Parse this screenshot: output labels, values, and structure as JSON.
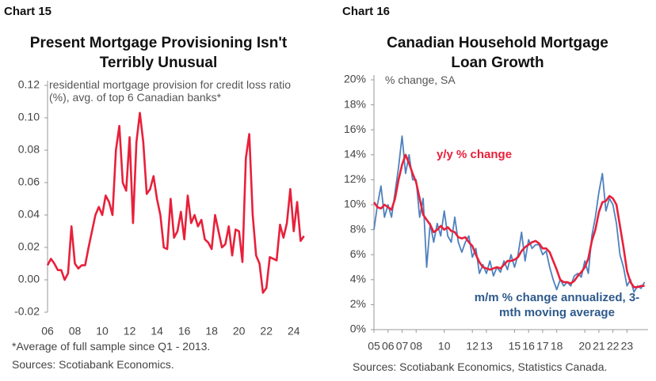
{
  "chart_data": [
    {
      "type": "line",
      "chart_label": "Chart 15",
      "title": "Present Mortgage Provisioning Isn't Terribly Unusual",
      "x": [
        2006,
        2006.25,
        2006.5,
        2006.75,
        2007,
        2007.25,
        2007.5,
        2007.75,
        2008,
        2008.25,
        2008.5,
        2008.75,
        2009,
        2009.25,
        2009.5,
        2009.75,
        2010,
        2010.25,
        2010.5,
        2010.75,
        2011,
        2011.25,
        2011.5,
        2011.75,
        2012,
        2012.25,
        2012.5,
        2012.75,
        2013,
        2013.25,
        2013.5,
        2013.75,
        2014,
        2014.25,
        2014.5,
        2014.75,
        2015,
        2015.25,
        2015.5,
        2015.75,
        2016,
        2016.25,
        2016.5,
        2016.75,
        2017,
        2017.25,
        2017.5,
        2017.75,
        2018,
        2018.25,
        2018.5,
        2018.75,
        2019,
        2019.25,
        2019.5,
        2019.75,
        2020,
        2020.25,
        2020.5,
        2020.75,
        2021,
        2021.25,
        2021.5,
        2021.75,
        2022,
        2022.25,
        2022.5,
        2022.75,
        2023,
        2023.25,
        2023.5,
        2023.75,
        2024,
        2024.25,
        2024.5,
        2024.75
      ],
      "series": [
        {
          "name": "residential mortgage provision for credit loss ratio (%), avg. of top 6 Canadian banks*",
          "color": "#e8203a",
          "values": [
            0.009,
            0.013,
            0.01,
            0.006,
            0.006,
            0,
            0.004,
            0.033,
            0.01,
            0.007,
            0.009,
            0.009,
            0.02,
            0.03,
            0.04,
            0.045,
            0.04,
            0.052,
            0.048,
            0.04,
            0.08,
            0.095,
            0.06,
            0.055,
            0.088,
            0.035,
            0.085,
            0.103,
            0.085,
            0.053,
            0.056,
            0.064,
            0.05,
            0.04,
            0.02,
            0.019,
            0.05,
            0.026,
            0.03,
            0.042,
            0.025,
            0.052,
            0.035,
            0.04,
            0.033,
            0.037,
            0.025,
            0.023,
            0.019,
            0.04,
            0.03,
            0.02,
            0.022,
            0.033,
            0.015,
            0.031,
            0.03,
            0.011,
            0.075,
            0.09,
            0.04,
            0.015,
            0.01,
            -0.008,
            -0.005,
            0.014,
            0.013,
            0.012,
            0.034,
            0.026,
            0.035,
            0.056,
            0.03,
            0.048,
            0.024,
            0.027
          ]
        }
      ],
      "xlim": [
        2006,
        2025
      ],
      "xticks": [
        {
          "value": 2006,
          "label": "06"
        },
        {
          "value": 2008,
          "label": "08"
        },
        {
          "value": 2010,
          "label": "10"
        },
        {
          "value": 2012,
          "label": "12"
        },
        {
          "value": 2014,
          "label": "14"
        },
        {
          "value": 2016,
          "label": "16"
        },
        {
          "value": 2018,
          "label": "18"
        },
        {
          "value": 2020,
          "label": "20"
        },
        {
          "value": 2022,
          "label": "22"
        },
        {
          "value": 2024,
          "label": "24"
        }
      ],
      "ylim": [
        -0.02,
        0.12
      ],
      "yticks": [
        -0.02,
        {
          "value": 0,
          "label": "0.00"
        },
        0.02,
        0.04,
        0.06,
        0.08,
        {
          "value": 0.1,
          "label": "0.10"
        },
        0.12
      ],
      "grid": false,
      "footnotes": [
        "*Average of full sample since Q1 - 2013.",
        "Sources: Scotiabank Economics."
      ]
    },
    {
      "type": "line",
      "chart_label": "Chart 16",
      "title": "Canadian Household Mortgage Loan Growth",
      "ylabel": "% change, SA",
      "x": [
        2005,
        2005.25,
        2005.5,
        2005.75,
        2006,
        2006.25,
        2006.5,
        2006.75,
        2007,
        2007.25,
        2007.5,
        2007.75,
        2008,
        2008.25,
        2008.5,
        2008.75,
        2009,
        2009.25,
        2009.5,
        2009.75,
        2010,
        2010.25,
        2010.5,
        2010.75,
        2011,
        2011.25,
        2011.5,
        2011.75,
        2012,
        2012.25,
        2012.5,
        2012.75,
        2013,
        2013.25,
        2013.5,
        2013.75,
        2014,
        2014.25,
        2014.5,
        2014.75,
        2015,
        2015.25,
        2015.5,
        2015.75,
        2016,
        2016.25,
        2016.5,
        2016.75,
        2017,
        2017.25,
        2017.5,
        2017.75,
        2018,
        2018.25,
        2018.5,
        2018.75,
        2019,
        2019.25,
        2019.5,
        2019.75,
        2020,
        2020.25,
        2020.5,
        2020.75,
        2021,
        2021.25,
        2021.5,
        2021.75,
        2022,
        2022.25,
        2022.5,
        2022.75,
        2023,
        2023.25,
        2023.5,
        2023.75,
        2024,
        2024.25
      ],
      "series": [
        {
          "name": "m/m % change annualized, 3-mth moving average",
          "color": "#4f81bd",
          "values": [
            8.0,
            10.0,
            11.5,
            9.0,
            10.0,
            9.0,
            11.0,
            13.0,
            15.5,
            12.5,
            14.0,
            12.0,
            12.0,
            9.0,
            10.5,
            5.0,
            8.5,
            7.0,
            8.5,
            7.5,
            9.5,
            7.5,
            7.0,
            9.0,
            7.0,
            6.2,
            7.0,
            7.5,
            5.8,
            6.5,
            4.5,
            5.2,
            4.5,
            5.5,
            4.3,
            5.0,
            4.6,
            5.5,
            4.8,
            6.0,
            5.0,
            6.0,
            7.8,
            5.5,
            7.2,
            6.5,
            6.8,
            6.8,
            6.0,
            6.3,
            5.0,
            4.0,
            3.2,
            4.0,
            3.5,
            3.8,
            3.5,
            4.3,
            4.5,
            4.2,
            5.5,
            4.5,
            7.5,
            9.0,
            11.0,
            12.5,
            9.5,
            10.5,
            10.0,
            8.5,
            6.0,
            5.0,
            3.5,
            4.0,
            3.0,
            3.5,
            3.3,
            3.8
          ]
        },
        {
          "name": "y/y % change",
          "color": "#e8203a",
          "values": [
            10.2,
            9.8,
            9.7,
            10.0,
            9.8,
            9.6,
            10.5,
            12.0,
            13.2,
            14.0,
            13.3,
            12.5,
            11.8,
            10.5,
            9.2,
            8.8,
            8.4,
            7.8,
            8.0,
            8.3,
            8.0,
            8.2,
            7.9,
            7.8,
            7.4,
            7.3,
            7.4,
            7.0,
            6.7,
            6.0,
            5.4,
            5.0,
            4.9,
            4.8,
            4.9,
            5.0,
            4.9,
            5.2,
            5.5,
            5.5,
            5.6,
            5.8,
            6.3,
            6.6,
            6.8,
            7.0,
            7.1,
            6.9,
            6.5,
            6.5,
            6.2,
            5.5,
            4.8,
            4.0,
            3.8,
            3.8,
            3.7,
            3.9,
            4.3,
            4.6,
            5.0,
            5.7,
            7.1,
            8.0,
            9.4,
            10.2,
            10.3,
            10.7,
            10.5,
            10.0,
            8.3,
            6.6,
            4.7,
            3.8,
            3.4,
            3.4,
            3.5,
            3.5
          ]
        }
      ],
      "xlim": [
        2005,
        2024.5
      ],
      "xticks": [
        {
          "value": 2005,
          "label": "05"
        },
        {
          "value": 2006,
          "label": "06"
        },
        {
          "value": 2007,
          "label": "07"
        },
        {
          "value": 2008,
          "label": "08"
        },
        {
          "value": 2010,
          "label": "10"
        },
        {
          "value": 2012,
          "label": "12"
        },
        {
          "value": 2013,
          "label": "13"
        },
        {
          "value": 2015,
          "label": "15"
        },
        {
          "value": 2016,
          "label": "16"
        },
        {
          "value": 2017,
          "label": "17"
        },
        {
          "value": 2018,
          "label": "18"
        },
        {
          "value": 2020,
          "label": "20"
        },
        {
          "value": 2021,
          "label": "21"
        },
        {
          "value": 2022,
          "label": "22"
        },
        {
          "value": 2023,
          "label": "23"
        }
      ],
      "ylim": [
        0,
        20
      ],
      "yticks": [
        {
          "value": 0,
          "label": "0%"
        },
        {
          "value": 2,
          "label": "2%"
        },
        {
          "value": 4,
          "label": "4%"
        },
        {
          "value": 6,
          "label": "6%"
        },
        {
          "value": 8,
          "label": "8%"
        },
        {
          "value": 10,
          "label": "10%"
        },
        {
          "value": 12,
          "label": "12%"
        },
        {
          "value": 14,
          "label": "14%"
        },
        {
          "value": 16,
          "label": "16%"
        },
        {
          "value": 18,
          "label": "18%"
        },
        {
          "value": 20,
          "label": "20%"
        }
      ],
      "grid": false,
      "footnotes": [
        "Sources: Scotiabank Economics, Statistics Canada."
      ]
    }
  ]
}
